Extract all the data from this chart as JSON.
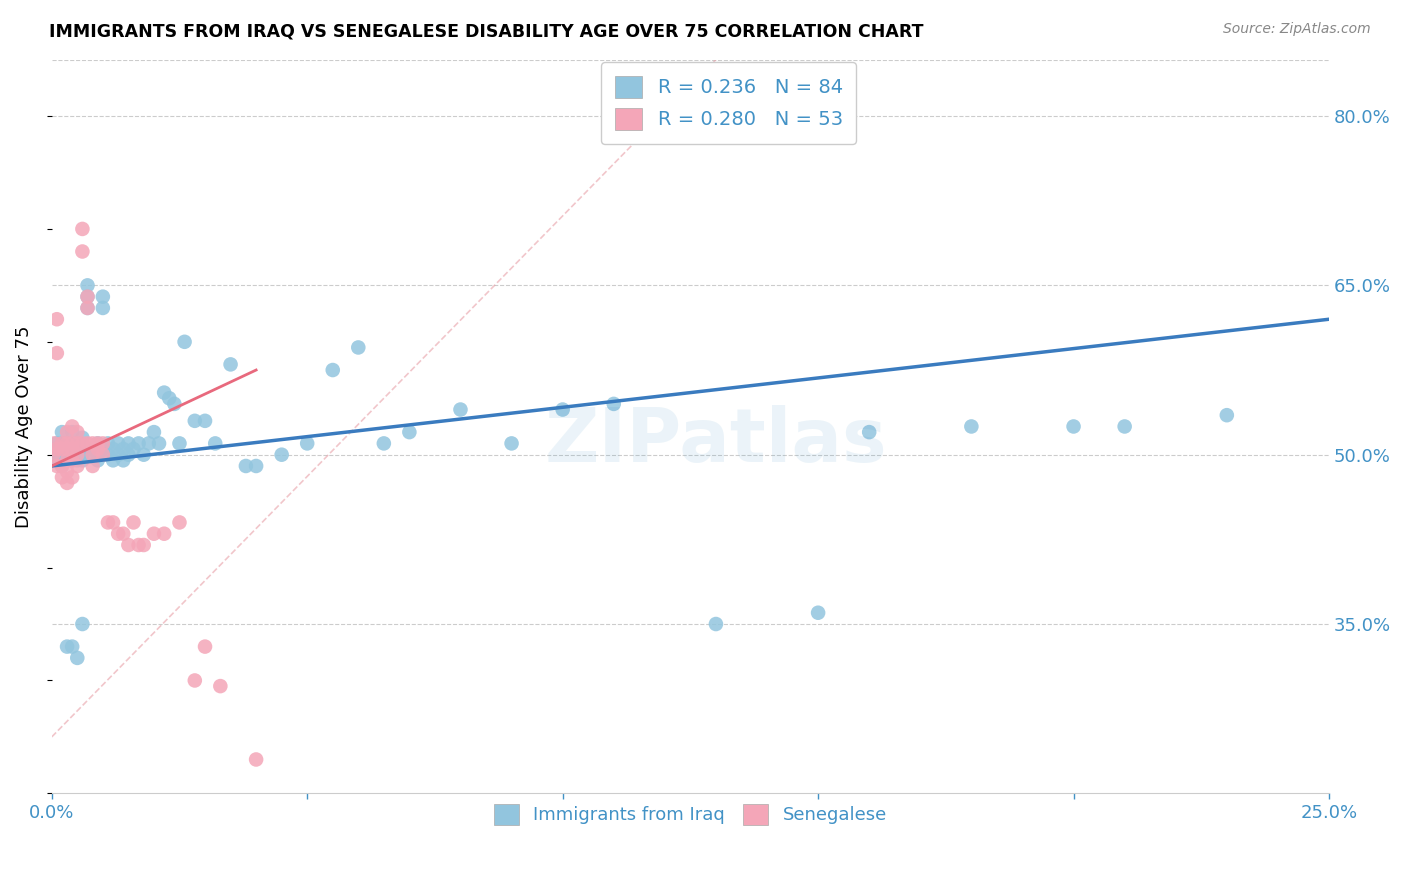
{
  "title": "IMMIGRANTS FROM IRAQ VS SENEGALESE DISABILITY AGE OVER 75 CORRELATION CHART",
  "source": "Source: ZipAtlas.com",
  "ylabel": "Disability Age Over 75",
  "xlim": [
    0.0,
    0.25
  ],
  "ylim": [
    0.2,
    0.85
  ],
  "y_ticks_right": [
    0.8,
    0.65,
    0.5,
    0.35
  ],
  "y_tick_labels_right": [
    "80.0%",
    "65.0%",
    "50.0%",
    "35.0%"
  ],
  "watermark": "ZIPatlas",
  "legend_r1": "0.236",
  "legend_n1": "84",
  "legend_r2": "0.280",
  "legend_n2": "53",
  "blue_color": "#92c5de",
  "pink_color": "#f4a6b8",
  "line_blue": "#3a7bbf",
  "line_pink": "#e8697d",
  "axis_color": "#4292c6",
  "iraq_x": [
    0.0008,
    0.001,
    0.0012,
    0.0015,
    0.002,
    0.002,
    0.002,
    0.002,
    0.003,
    0.003,
    0.003,
    0.003,
    0.004,
    0.004,
    0.004,
    0.004,
    0.004,
    0.005,
    0.005,
    0.005,
    0.005,
    0.006,
    0.006,
    0.006,
    0.006,
    0.007,
    0.007,
    0.007,
    0.008,
    0.008,
    0.009,
    0.009,
    0.009,
    0.01,
    0.01,
    0.01,
    0.011,
    0.011,
    0.012,
    0.012,
    0.013,
    0.013,
    0.014,
    0.014,
    0.015,
    0.015,
    0.016,
    0.017,
    0.018,
    0.019,
    0.02,
    0.021,
    0.022,
    0.023,
    0.024,
    0.025,
    0.026,
    0.028,
    0.03,
    0.032,
    0.035,
    0.038,
    0.04,
    0.045,
    0.05,
    0.055,
    0.06,
    0.065,
    0.07,
    0.08,
    0.09,
    0.1,
    0.11,
    0.13,
    0.15,
    0.16,
    0.18,
    0.2,
    0.21,
    0.23,
    0.003,
    0.004,
    0.005,
    0.006
  ],
  "iraq_y": [
    0.5,
    0.51,
    0.495,
    0.505,
    0.5,
    0.51,
    0.49,
    0.52,
    0.505,
    0.5,
    0.495,
    0.51,
    0.5,
    0.505,
    0.495,
    0.51,
    0.52,
    0.5,
    0.505,
    0.495,
    0.51,
    0.5,
    0.505,
    0.495,
    0.515,
    0.64,
    0.65,
    0.63,
    0.5,
    0.505,
    0.51,
    0.5,
    0.495,
    0.64,
    0.63,
    0.505,
    0.51,
    0.5,
    0.505,
    0.495,
    0.51,
    0.5,
    0.505,
    0.495,
    0.51,
    0.5,
    0.505,
    0.51,
    0.5,
    0.51,
    0.52,
    0.51,
    0.555,
    0.55,
    0.545,
    0.51,
    0.6,
    0.53,
    0.53,
    0.51,
    0.58,
    0.49,
    0.49,
    0.5,
    0.51,
    0.575,
    0.595,
    0.51,
    0.52,
    0.54,
    0.51,
    0.54,
    0.545,
    0.35,
    0.36,
    0.52,
    0.525,
    0.525,
    0.525,
    0.535,
    0.33,
    0.33,
    0.32,
    0.35
  ],
  "senegal_x": [
    0.0003,
    0.0005,
    0.001,
    0.001,
    0.001,
    0.001,
    0.002,
    0.002,
    0.002,
    0.002,
    0.003,
    0.003,
    0.003,
    0.003,
    0.003,
    0.003,
    0.004,
    0.004,
    0.004,
    0.004,
    0.004,
    0.005,
    0.005,
    0.005,
    0.005,
    0.006,
    0.006,
    0.006,
    0.007,
    0.007,
    0.007,
    0.008,
    0.008,
    0.008,
    0.009,
    0.009,
    0.01,
    0.01,
    0.011,
    0.012,
    0.013,
    0.014,
    0.015,
    0.016,
    0.017,
    0.018,
    0.02,
    0.022,
    0.025,
    0.028,
    0.03,
    0.033,
    0.04
  ],
  "senegal_y": [
    0.5,
    0.51,
    0.62,
    0.59,
    0.505,
    0.49,
    0.51,
    0.505,
    0.49,
    0.48,
    0.51,
    0.505,
    0.495,
    0.485,
    0.52,
    0.475,
    0.51,
    0.505,
    0.495,
    0.525,
    0.48,
    0.51,
    0.5,
    0.49,
    0.52,
    0.7,
    0.68,
    0.51,
    0.64,
    0.63,
    0.51,
    0.5,
    0.49,
    0.51,
    0.51,
    0.505,
    0.51,
    0.5,
    0.44,
    0.44,
    0.43,
    0.43,
    0.42,
    0.44,
    0.42,
    0.42,
    0.43,
    0.43,
    0.44,
    0.3,
    0.33,
    0.295,
    0.23
  ],
  "diag_line_x": [
    0.0,
    0.13
  ],
  "diag_line_y": [
    0.25,
    0.85
  ]
}
